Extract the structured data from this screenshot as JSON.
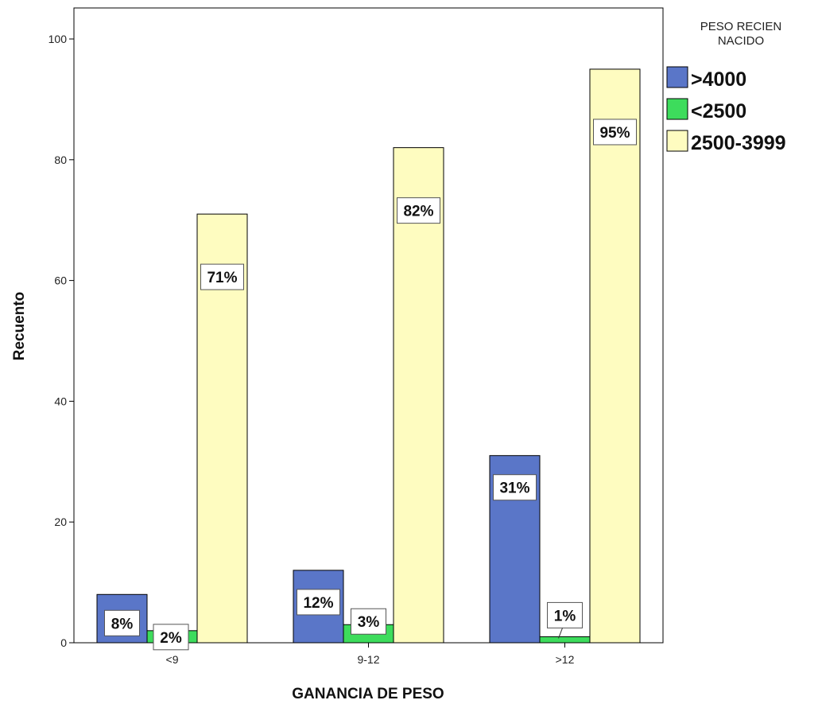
{
  "chart_data": {
    "type": "bar",
    "xlabel": "GANANCIA DE PESO",
    "ylabel": "Recuento",
    "ylim": [
      0,
      100
    ],
    "yticks": [
      0,
      20,
      40,
      60,
      80,
      100
    ],
    "categories": [
      "<9",
      "9-12",
      ">12"
    ],
    "grid": false,
    "legend": {
      "title_lines": [
        "PESO RECIEN",
        "NACIDO"
      ],
      "placement": "right"
    },
    "series": [
      {
        "name": ">4000",
        "color": "#5a76c8",
        "values": [
          8,
          12,
          31
        ],
        "labels": [
          "8%",
          "12%",
          "31%"
        ]
      },
      {
        "name": "<2500",
        "color": "#3ddc5c",
        "values": [
          2,
          3,
          1
        ],
        "labels": [
          "2%",
          "3%",
          "1%"
        ]
      },
      {
        "name": "2500-3999",
        "color": "#fefcc0",
        "values": [
          71,
          82,
          95
        ],
        "labels": [
          "71%",
          "82%",
          "95%"
        ]
      }
    ]
  }
}
